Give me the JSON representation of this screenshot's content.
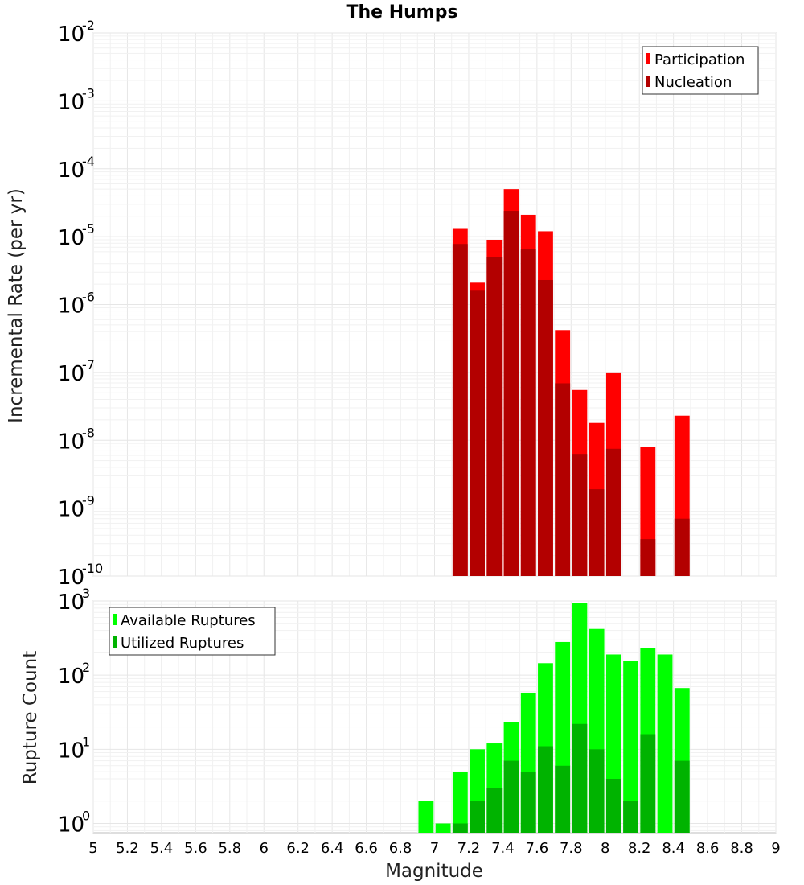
{
  "title": "The Humps",
  "colors": {
    "participation": "#ff0000",
    "nucleation": "#b30000",
    "available": "#00ff00",
    "utilized": "#00b300"
  },
  "chart_data": [
    {
      "type": "bar",
      "title": "The Humps",
      "xlabel": "",
      "ylabel": "Incremental Rate (per yr)",
      "scale_y": "log",
      "ylim": [
        1e-10,
        0.01
      ],
      "xlim": [
        5,
        9
      ],
      "bin_width": 0.1,
      "y_ticks": [
        {
          "base": "10",
          "exp": "-10"
        },
        {
          "base": "10",
          "exp": "-9"
        },
        {
          "base": "10",
          "exp": "-8"
        },
        {
          "base": "10",
          "exp": "-7"
        },
        {
          "base": "10",
          "exp": "-6"
        },
        {
          "base": "10",
          "exp": "-5"
        },
        {
          "base": "10",
          "exp": "-4"
        },
        {
          "base": "10",
          "exp": "-3"
        },
        {
          "base": "10",
          "exp": "-2"
        }
      ],
      "legend": [
        "Participation",
        "Nucleation"
      ],
      "legend_position": "top-right",
      "grid": true,
      "series": [
        {
          "name": "Participation",
          "x": [
            7.15,
            7.25,
            7.35,
            7.45,
            7.55,
            7.65,
            7.75,
            7.85,
            7.95,
            8.05,
            8.25,
            8.45
          ],
          "values": [
            1.3e-05,
            2.1e-06,
            9e-06,
            5e-05,
            2.1e-05,
            1.2e-05,
            4.2e-07,
            5.5e-08,
            1.8e-08,
            1e-07,
            8e-09,
            2.3e-08
          ]
        },
        {
          "name": "Nucleation",
          "x": [
            7.15,
            7.25,
            7.35,
            7.45,
            7.55,
            7.65,
            7.75,
            7.85,
            7.95,
            8.05,
            8.25,
            8.45
          ],
          "values": [
            7.8e-06,
            1.6e-06,
            5e-06,
            2.4e-05,
            6.6e-06,
            2.3e-06,
            6.9e-08,
            6.3e-09,
            1.9e-09,
            7.5e-09,
            3.5e-10,
            7e-10
          ]
        }
      ]
    },
    {
      "type": "bar",
      "title": "",
      "xlabel": "Magnitude",
      "ylabel": "Rupture Count",
      "scale_y": "log",
      "ylim": [
        0.75,
        1000
      ],
      "xlim": [
        5,
        9
      ],
      "bin_width": 0.1,
      "x_ticks": [
        "5",
        "5.2",
        "5.4",
        "5.6",
        "5.8",
        "6",
        "6.2",
        "6.4",
        "6.6",
        "6.8",
        "7",
        "7.2",
        "7.4",
        "7.6",
        "7.8",
        "8",
        "8.2",
        "8.4",
        "8.6",
        "8.8",
        "9"
      ],
      "y_ticks": [
        {
          "base": "10",
          "exp": "0"
        },
        {
          "base": "10",
          "exp": "1"
        },
        {
          "base": "10",
          "exp": "2"
        },
        {
          "base": "10",
          "exp": "3"
        }
      ],
      "legend": [
        "Available Ruptures",
        "Utilized Ruptures"
      ],
      "legend_position": "top-left",
      "grid": true,
      "series": [
        {
          "name": "Available Ruptures",
          "x": [
            6.95,
            7.05,
            7.15,
            7.25,
            7.35,
            7.45,
            7.55,
            7.65,
            7.75,
            7.85,
            7.95,
            8.05,
            8.15,
            8.25,
            8.35,
            8.45
          ],
          "values": [
            2,
            1,
            5,
            10,
            12,
            23,
            58,
            145,
            280,
            950,
            420,
            190,
            155,
            230,
            190,
            67
          ]
        },
        {
          "name": "Utilized Ruptures",
          "x": [
            6.95,
            7.05,
            7.15,
            7.25,
            7.35,
            7.45,
            7.55,
            7.65,
            7.75,
            7.85,
            7.95,
            8.05,
            8.15,
            8.25,
            8.35,
            8.45
          ],
          "values": [
            null,
            null,
            1,
            2,
            3,
            7,
            5,
            11,
            6,
            22,
            10,
            4,
            2,
            16,
            null,
            7
          ]
        }
      ]
    }
  ]
}
